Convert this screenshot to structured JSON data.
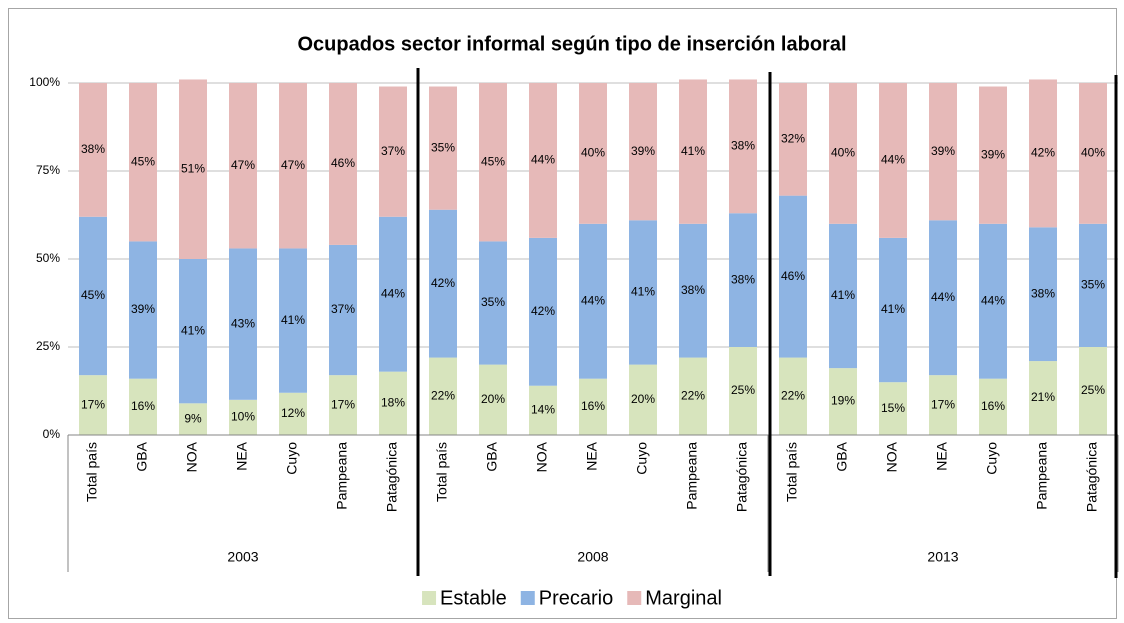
{
  "chart_data": {
    "type": "stacked_bar",
    "title": "Ocupados sector informal según tipo de inserción laboral",
    "categories": [
      "Total país",
      "GBA",
      "NOA",
      "NEA",
      "Cuyo",
      "Pampeana",
      "Patagónica",
      "Total país",
      "GBA",
      "NOA",
      "NEA",
      "Cuyo",
      "Pampeana",
      "Patagónica",
      "Total país",
      "GBA",
      "NOA",
      "NEA",
      "Cuyo",
      "Pampeana",
      "Patagónica"
    ],
    "groups": [
      "2003",
      "2008",
      "2013"
    ],
    "ylim": [
      0,
      100
    ],
    "yticks": [
      {
        "value": 0,
        "label": "0%"
      },
      {
        "value": 25,
        "label": "25%"
      },
      {
        "value": 50,
        "label": "50%"
      },
      {
        "value": 75,
        "label": "75%"
      },
      {
        "value": 100,
        "label": "100%"
      }
    ],
    "grid": true,
    "legend": "bottom",
    "series": [
      {
        "name": "Estable",
        "color": "#d7e4bd",
        "values": [
          17,
          16,
          9,
          10,
          12,
          17,
          18,
          22,
          20,
          14,
          16,
          20,
          22,
          25,
          22,
          19,
          15,
          17,
          16,
          21,
          25
        ],
        "value_labels": [
          "17%",
          "16%",
          "9%",
          "10%",
          "12%",
          "17%",
          "18%",
          "22%",
          "20%",
          "14%",
          "16%",
          "20%",
          "22%",
          "25%",
          "22%",
          "19%",
          "15%",
          "17%",
          "16%",
          "21%",
          "25%"
        ]
      },
      {
        "name": "Precario",
        "color": "#8eb4e3",
        "values": [
          45,
          39,
          41,
          43,
          41,
          37,
          44,
          42,
          35,
          42,
          44,
          41,
          38,
          38,
          46,
          41,
          41,
          44,
          44,
          38,
          35
        ],
        "value_labels": [
          "45%",
          "39%",
          "41%",
          "43%",
          "41%",
          "37%",
          "44%",
          "42%",
          "35%",
          "42%",
          "44%",
          "41%",
          "38%",
          "38%",
          "46%",
          "41%",
          "41%",
          "44%",
          "44%",
          "38%",
          "35%"
        ]
      },
      {
        "name": "Marginal",
        "color": "#e6b9b8",
        "values": [
          38,
          45,
          51,
          47,
          47,
          46,
          37,
          35,
          45,
          44,
          40,
          39,
          41,
          38,
          32,
          40,
          44,
          39,
          39,
          42,
          40
        ],
        "value_labels": [
          "38%",
          "45%",
          "51%",
          "47%",
          "47%",
          "46%",
          "37%",
          "35%",
          "45%",
          "44%",
          "40%",
          "39%",
          "41%",
          "38%",
          "32%",
          "40%",
          "44%",
          "39%",
          "39%",
          "42%",
          "40%"
        ]
      }
    ]
  }
}
